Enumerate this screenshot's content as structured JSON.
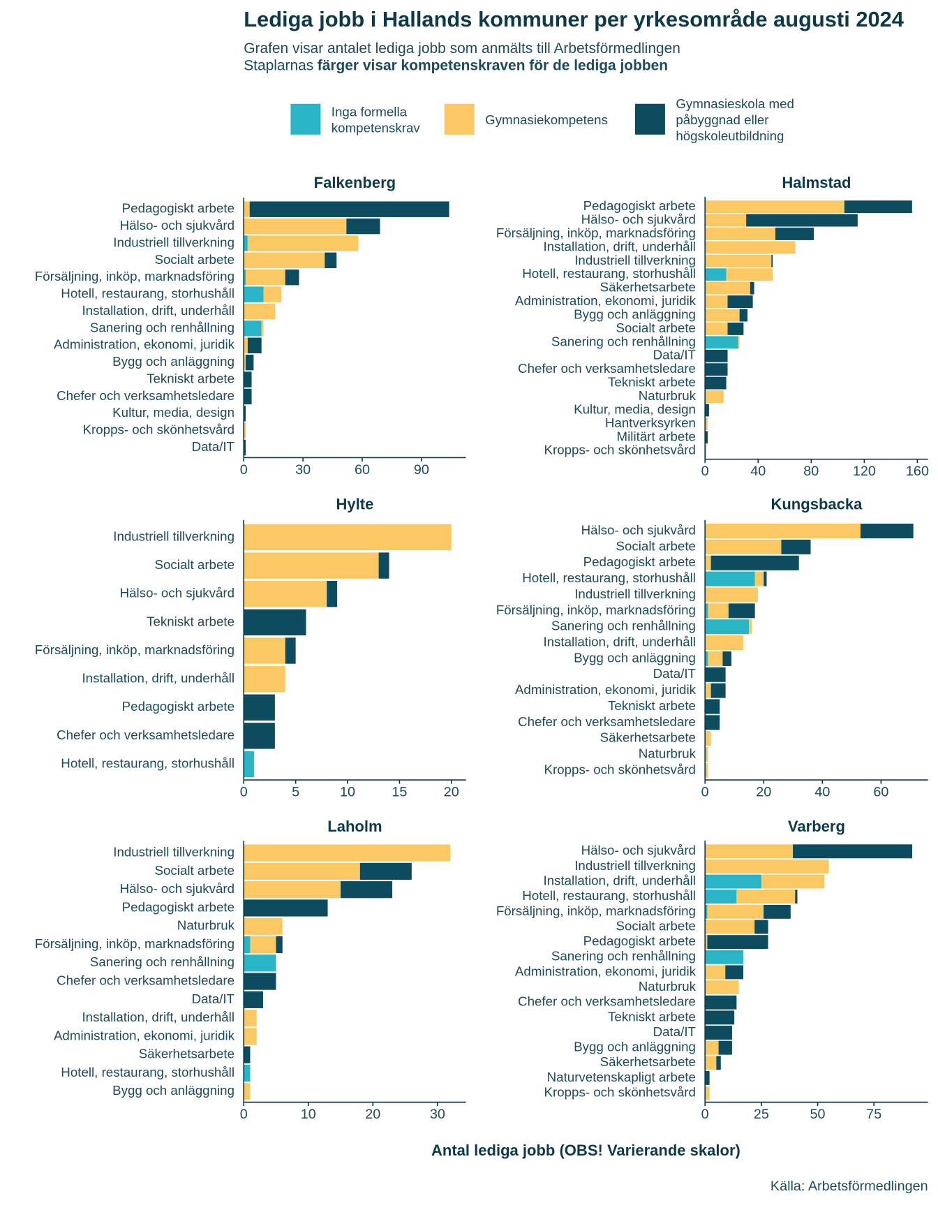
{
  "title": "Lediga jobb i Hallands kommuner per yrkesområde augusti 2024",
  "subtitle": "Grafen visar antalet lediga jobb som anmälts till Arbetsförmedlingen",
  "subtitle_2": "Staplarnas",
  "subtitle_2_bold": "färger visar kompetenskraven för de lediga jobben",
  "legend": {
    "position": "top",
    "entries": [
      {
        "name": "Inga formella kompetenskrav",
        "color": "#29b5c6"
      },
      {
        "name": "Gymnasiekompetens",
        "color": "#fbc863"
      },
      {
        "name": "Gymnasieskola med påbyggnad eller högskoleutbildning",
        "color": "#0d4b5f"
      }
    ]
  },
  "x_label": "Antal lediga jobb (OBS! Varierande skalor)",
  "source": "Källa: Arbetsförmedlingen",
  "chart_data": [
    {
      "type": "bar",
      "orientation": "horizontal",
      "stacked": true,
      "title": "Falkenberg",
      "categories": [
        "Pedagogiskt arbete",
        "Hälso- och sjukvård",
        "Industriell tillverkning",
        "Socialt arbete",
        "Försäljning, inköp, marknadsföring",
        "Hotell, restaurang, storhushåll",
        "Installation, drift, underhåll",
        "Sanering och renhållning",
        "Administration, ekonomi, juridik",
        "Bygg och anläggning",
        "Tekniskt arbete",
        "Chefer och verksamhetsledare",
        "Kultur, media, design",
        "Kropps- och skönhetsvård",
        "Data/IT"
      ],
      "series": [
        {
          "values": [
            0,
            0,
            2,
            0,
            1,
            10,
            0,
            9,
            0,
            0,
            0,
            0,
            0,
            0,
            0
          ]
        },
        {
          "values": [
            3,
            52,
            56,
            41,
            20,
            9,
            16,
            1,
            2,
            1,
            0,
            0,
            0,
            1,
            0
          ]
        },
        {
          "values": [
            101,
            17,
            0,
            6,
            7,
            0,
            0,
            0,
            7,
            4,
            4,
            4,
            1,
            0,
            1
          ]
        }
      ],
      "xlim": [
        0,
        112.5
      ],
      "xticks": [
        0,
        30,
        60,
        90
      ]
    },
    {
      "type": "bar",
      "orientation": "horizontal",
      "stacked": true,
      "title": "Halmstad",
      "categories": [
        "Pedagogiskt arbete",
        "Hälso- och sjukvård",
        "Försäljning, inköp, marknadsföring",
        "Installation, drift, underhåll",
        "Industriell tillverkning",
        "Hotell, restaurang, storhushåll",
        "Säkerhetsarbete",
        "Administration, ekonomi, juridik",
        "Bygg och anläggning",
        "Socialt arbete",
        "Sanering och renhållning",
        "Data/IT",
        "Chefer och verksamhetsledare",
        "Tekniskt arbete",
        "Naturbruk",
        "Kultur, media, design",
        "Hantverksyrken",
        "Militärt arbete",
        "Kropps- och skönhetsvård"
      ],
      "series": [
        {
          "values": [
            0,
            0,
            0,
            0,
            0,
            16,
            0,
            0,
            0,
            0,
            25,
            0,
            0,
            0,
            0,
            0,
            0,
            0,
            0
          ]
        },
        {
          "values": [
            105,
            31,
            53,
            68,
            50,
            35,
            34,
            17,
            26,
            17,
            1,
            0,
            0,
            0,
            14,
            0,
            2,
            0,
            1
          ]
        },
        {
          "values": [
            51,
            84,
            29,
            0,
            1,
            0,
            3,
            19,
            6,
            12,
            0,
            17,
            17,
            16,
            0,
            3,
            0,
            2,
            0
          ]
        }
      ],
      "xlim": [
        0,
        168
      ],
      "xticks": [
        0,
        40,
        80,
        120,
        160
      ]
    },
    {
      "type": "bar",
      "orientation": "horizontal",
      "stacked": true,
      "title": "Hylte",
      "categories": [
        "Industriell tillverkning",
        "Socialt arbete",
        "Hälso- och sjukvård",
        "Tekniskt arbete",
        "Försäljning, inköp, marknadsföring",
        "Installation, drift, underhåll",
        "Pedagogiskt arbete",
        "Chefer och verksamhetsledare",
        "Hotell, restaurang, storhushåll"
      ],
      "series": [
        {
          "values": [
            0,
            0,
            0,
            0,
            0,
            0,
            0,
            0,
            1
          ]
        },
        {
          "values": [
            20,
            13,
            8,
            0,
            4,
            4,
            0,
            0,
            0
          ]
        },
        {
          "values": [
            0,
            1,
            1,
            6,
            1,
            0,
            3,
            3,
            0
          ]
        }
      ],
      "xlim": [
        0,
        21.4
      ],
      "xticks": [
        0,
        5,
        10,
        15,
        20
      ]
    },
    {
      "type": "bar",
      "orientation": "horizontal",
      "stacked": true,
      "title": "Kungsbacka",
      "categories": [
        "Hälso- och sjukvård",
        "Socialt arbete",
        "Pedagogiskt arbete",
        "Hotell, restaurang, storhushåll",
        "Industriell tillverkning",
        "Försäljning, inköp, marknadsföring",
        "Sanering och renhållning",
        "Installation, drift, underhåll",
        "Bygg och anläggning",
        "Data/IT",
        "Administration, ekonomi, juridik",
        "Tekniskt arbete",
        "Chefer och verksamhetsledare",
        "Säkerhetsarbete",
        "Naturbruk",
        "Kropps- och skönhetsvård"
      ],
      "series": [
        {
          "values": [
            0,
            0,
            0,
            17,
            0,
            1,
            15,
            0,
            1,
            0,
            0,
            0,
            0,
            0,
            0,
            0
          ]
        },
        {
          "values": [
            53,
            26,
            2,
            3,
            18,
            7,
            1,
            13,
            5,
            0,
            2,
            0,
            0,
            2,
            1,
            1
          ]
        },
        {
          "values": [
            18,
            10,
            30,
            1,
            0,
            9,
            0,
            0,
            3,
            7,
            5,
            5,
            5,
            0,
            0,
            0
          ]
        }
      ],
      "xlim": [
        0,
        76
      ],
      "xticks": [
        0,
        20,
        40,
        60
      ]
    },
    {
      "type": "bar",
      "orientation": "horizontal",
      "stacked": true,
      "title": "Laholm",
      "categories": [
        "Industriell tillverkning",
        "Socialt arbete",
        "Hälso- och sjukvård",
        "Pedagogiskt arbete",
        "Naturbruk",
        "Försäljning, inköp, marknadsföring",
        "Sanering och renhållning",
        "Chefer och verksamhetsledare",
        "Data/IT",
        "Installation, drift, underhåll",
        "Administration, ekonomi, juridik",
        "Säkerhetsarbete",
        "Hotell, restaurang, storhushåll",
        "Bygg och anläggning"
      ],
      "series": [
        {
          "values": [
            0,
            0,
            0,
            0,
            0,
            1,
            5,
            0,
            0,
            0,
            0,
            0,
            1,
            0
          ]
        },
        {
          "values": [
            32,
            18,
            15,
            0,
            6,
            4,
            0,
            0,
            0,
            2,
            2,
            0,
            0,
            1
          ]
        },
        {
          "values": [
            0,
            8,
            8,
            13,
            0,
            1,
            0,
            5,
            3,
            0,
            0,
            1,
            0,
            0
          ]
        }
      ],
      "xlim": [
        0,
        34.4
      ],
      "xticks": [
        0,
        10,
        20,
        30
      ]
    },
    {
      "type": "bar",
      "orientation": "horizontal",
      "stacked": true,
      "title": "Varberg",
      "categories": [
        "Hälso- och sjukvård",
        "Industriell tillverkning",
        "Installation, drift, underhåll",
        "Hotell, restaurang, storhushåll",
        "Försäljning, inköp, marknadsföring",
        "Socialt arbete",
        "Pedagogiskt arbete",
        "Sanering och renhållning",
        "Administration, ekonomi, juridik",
        "Naturbruk",
        "Chefer och verksamhetsledare",
        "Tekniskt arbete",
        "Data/IT",
        "Bygg och anläggning",
        "Säkerhetsarbete",
        "Naturvetenskapligt arbete",
        "Kropps- och skönhetsvård"
      ],
      "series": [
        {
          "values": [
            0,
            0,
            25,
            14,
            1,
            0,
            0,
            17,
            0,
            0,
            0,
            0,
            0,
            0,
            0,
            0,
            0
          ]
        },
        {
          "values": [
            39,
            55,
            28,
            26,
            25,
            22,
            1,
            0,
            9,
            15,
            0,
            0,
            0,
            6,
            5,
            0,
            2
          ]
        },
        {
          "values": [
            53,
            0,
            0,
            1,
            12,
            6,
            27,
            0,
            8,
            0,
            14,
            13,
            12,
            6,
            2,
            2,
            0
          ]
        }
      ],
      "xlim": [
        0,
        99
      ],
      "xticks": [
        0,
        25,
        50,
        75
      ]
    }
  ]
}
